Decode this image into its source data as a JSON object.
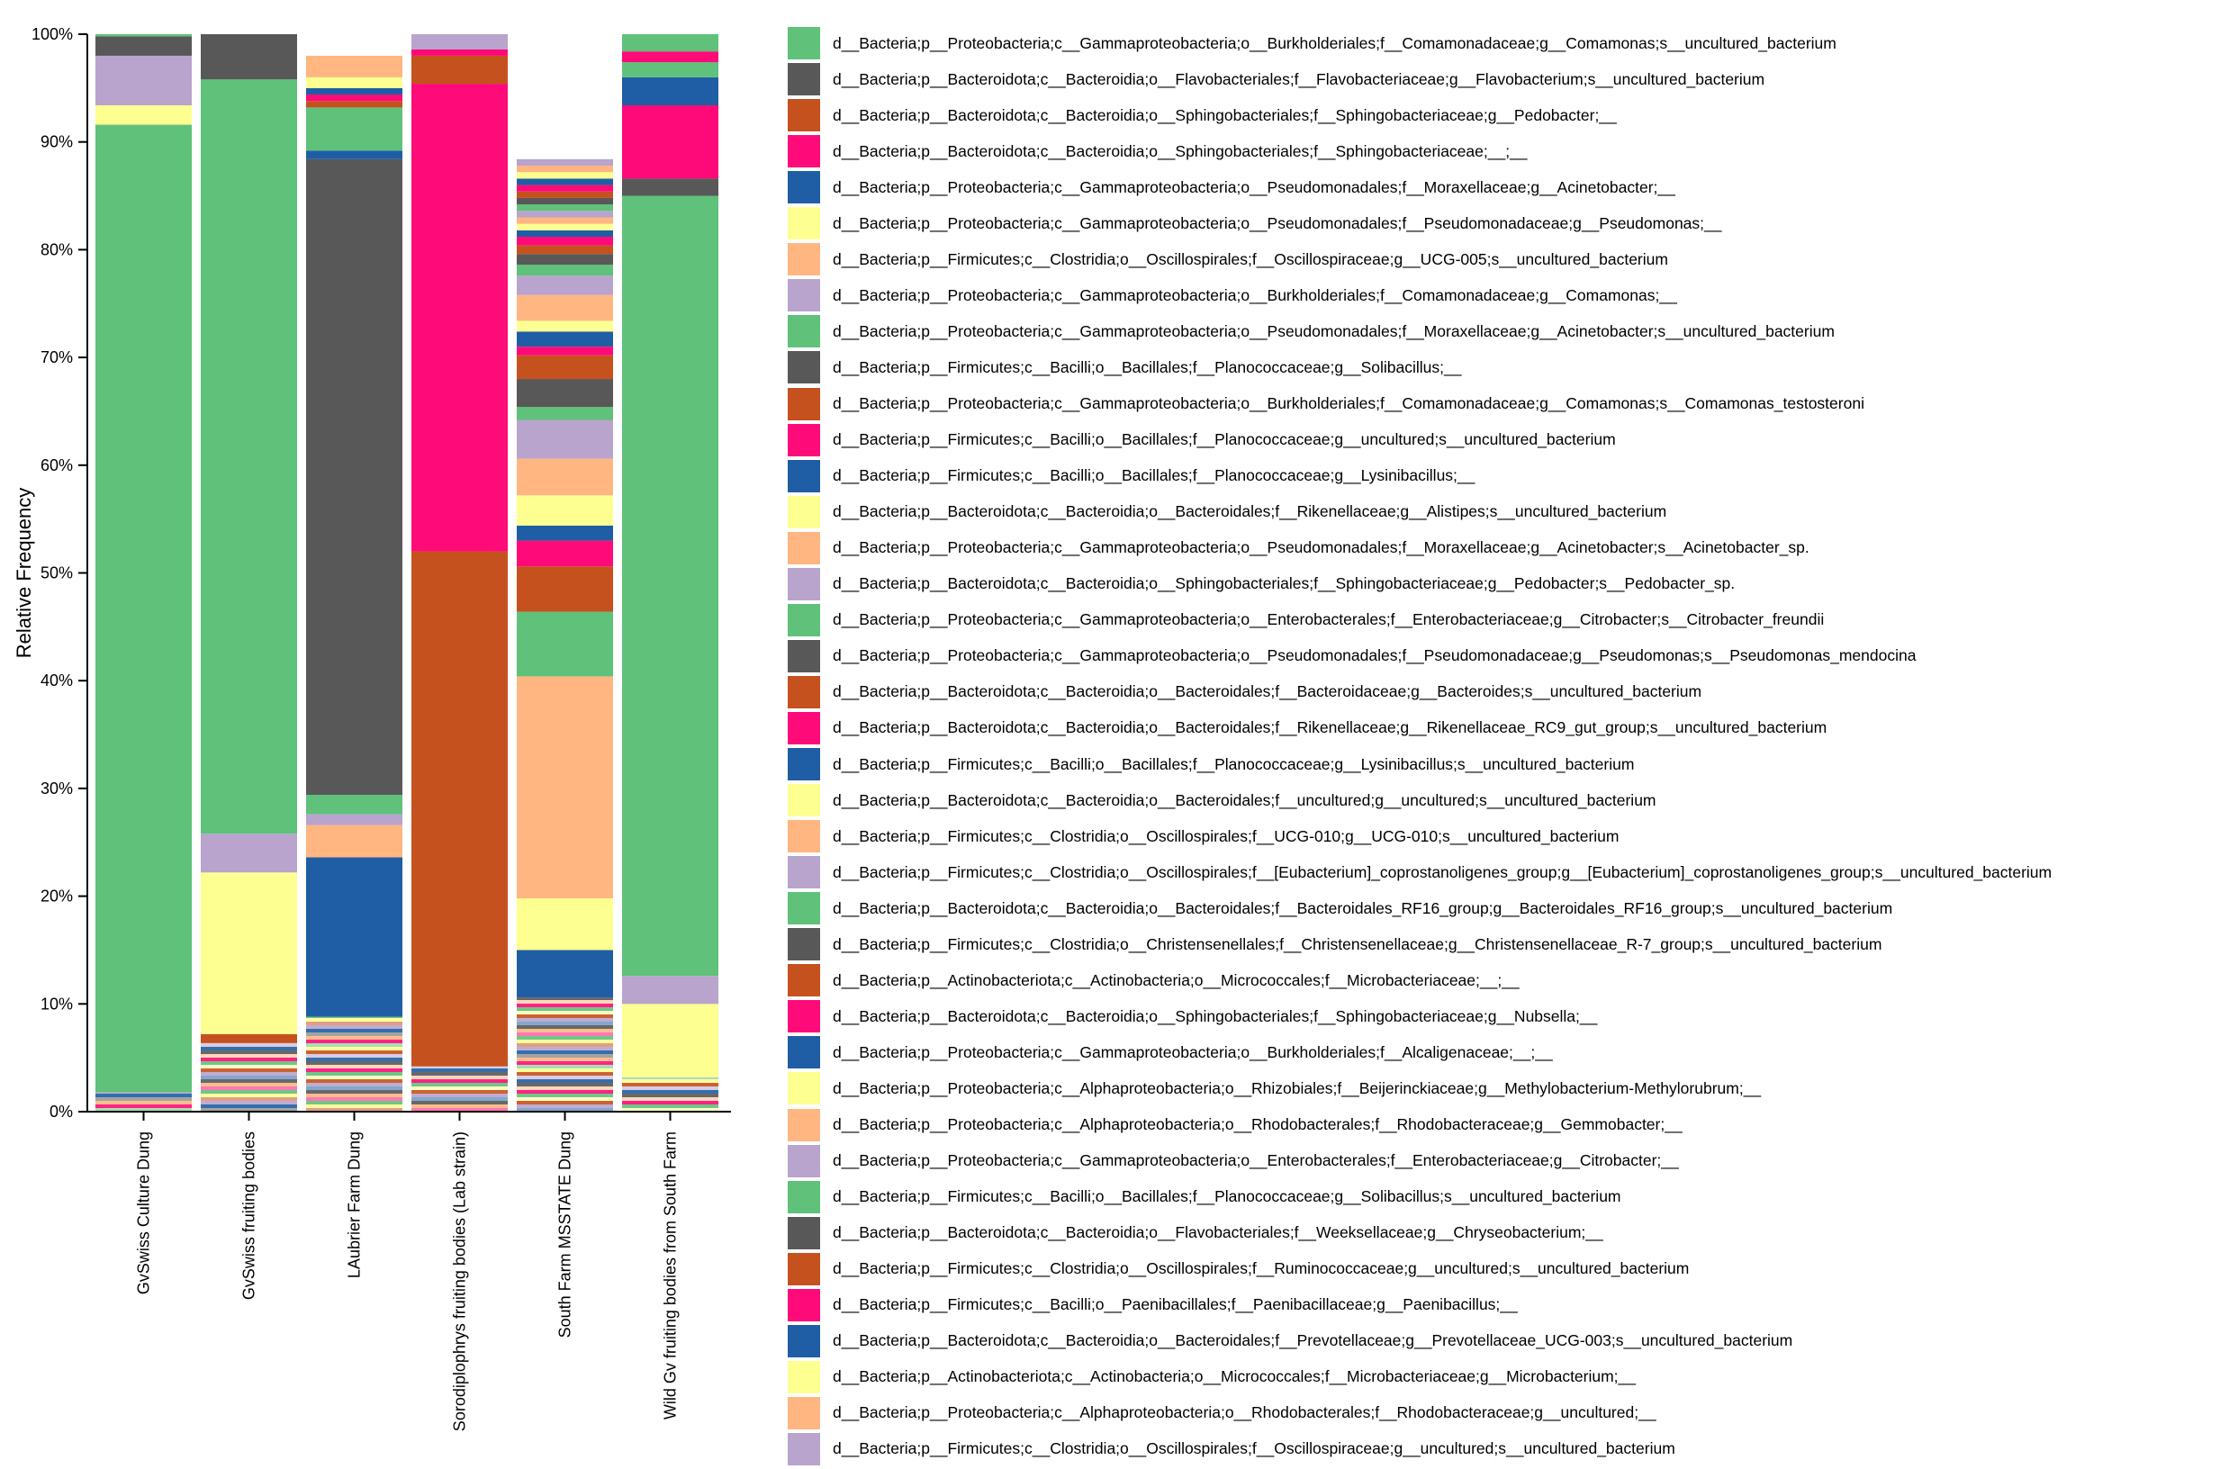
{
  "chart_data": {
    "type": "bar",
    "stacked": true,
    "ylabel": "Relative Frequency",
    "xlabel": "",
    "ylim": [
      0,
      100
    ],
    "y_ticks": [
      "0%",
      "10%",
      "20%",
      "30%",
      "40%",
      "50%",
      "60%",
      "70%",
      "80%",
      "90%",
      "100%"
    ],
    "palette": [
      "#5fc17a",
      "#585858",
      "#c5511f",
      "#ff0a79",
      "#1f5ea4",
      "#feff91",
      "#ffb681",
      "#b8a4cc"
    ],
    "categories": [
      "GvSwiss Culture Dung",
      "GvSwiss fruiting bodies",
      "LAubrier Farm Dung",
      "Sorodiplophrys fruiting bodies (Lab strain)",
      "South Farm MSSTATE Dung",
      "Wild Gv fruiting bodies from South Farm"
    ],
    "series": [
      {
        "name": "d__Bacteria;p__Proteobacteria;c__Gammaproteobacteria;o__Burkholderiales;f__Comamonadaceae;g__Comamonas;s__uncultured_bacterium",
        "values": [
          89.8,
          0,
          0,
          0,
          0,
          0
        ]
      },
      {
        "name": "d__Bacteria;p__Bacteroidota;c__Bacteroidia;o__Flavobacteriales;f__Flavobacteriaceae;g__Flavobacterium;s__uncultured_bacterium",
        "values": [
          0,
          0,
          0,
          0,
          0,
          0
        ]
      },
      {
        "name": "d__Bacteria;p__Bacteroidota;c__Bacteroidia;o__Sphingobacteriales;f__Sphingobacteriaceae;g__Pedobacter;__",
        "values": [
          0,
          0.8,
          0,
          47.8,
          0,
          0
        ]
      },
      {
        "name": "d__Bacteria;p__Bacteroidota;c__Bacteroidia;o__Sphingobacteriales;f__Sphingobacteriaceae;__;__",
        "values": [
          0,
          0,
          0,
          43.4,
          0,
          0
        ]
      },
      {
        "name": "d__Bacteria;p__Proteobacteria;c__Gammaproteobacteria;o__Pseudomonadales;f__Moraxellaceae;g__Acinetobacter;__",
        "values": [
          0,
          0,
          14.8,
          0,
          4.4,
          0
        ]
      },
      {
        "name": "d__Bacteria;p__Proteobacteria;c__Gammaproteobacteria;o__Pseudomonadales;f__Pseudomonadaceae;g__Pseudomonas;__",
        "values": [
          1.8,
          15.0,
          0,
          0,
          4.8,
          6.8
        ]
      },
      {
        "name": "d__Bacteria;p__Firmicutes;c__Clostridia;o__Oscillospirales;f__Oscillospiraceae;g__UCG-005;s__uncultured_bacterium",
        "values": [
          0,
          0,
          3.0,
          0,
          20.6,
          0
        ]
      },
      {
        "name": "d__Bacteria;p__Proteobacteria;c__Gammaproteobacteria;o__Burkholderiales;f__Comamonadaceae;g__Comamonas;__",
        "values": [
          4.6,
          3.6,
          1.0,
          0,
          0,
          2.6
        ]
      },
      {
        "name": "d__Bacteria;p__Proteobacteria;c__Gammaproteobacteria;o__Pseudomonadales;f__Moraxellaceae;g__Acinetobacter;s__uncultured_bacterium",
        "values": [
          0,
          70.0,
          1.8,
          0,
          6.0,
          72.4
        ]
      },
      {
        "name": "d__Bacteria;p__Firmicutes;c__Bacilli;o__Bacillales;f__Planococcaceae;g__Solibacillus;__",
        "values": [
          1.8,
          4.2,
          59.0,
          0,
          0,
          1.6
        ]
      },
      {
        "name": "d__Bacteria;p__Proteobacteria;c__Gammaproteobacteria;o__Burkholderiales;f__Comamonadaceae;g__Comamonas;s__Comamonas_testosteroni",
        "values": [
          0,
          0,
          0,
          0,
          4.2,
          0
        ]
      },
      {
        "name": "d__Bacteria;p__Firmicutes;c__Bacilli;o__Bacillales;f__Planococcaceae;g__uncultured;s__uncultured_bacterium",
        "values": [
          0,
          0,
          0,
          0,
          2.4,
          6.8
        ]
      },
      {
        "name": "d__Bacteria;p__Firmicutes;c__Bacilli;o__Bacillales;f__Planococcaceae;g__Lysinibacillus;__",
        "values": [
          0,
          0,
          0,
          0,
          1.4,
          2.6
        ]
      },
      {
        "name": "d__Bacteria;p__Bacteroidota;c__Bacteroidia;o__Bacteroidales;f__Rikenellaceae;g__Alistipes;s__uncultured_bacterium",
        "values": [
          0,
          0,
          0,
          0,
          2.8,
          0
        ]
      },
      {
        "name": "d__Bacteria;p__Proteobacteria;c__Gammaproteobacteria;o__Pseudomonadales;f__Moraxellaceae;g__Acinetobacter;s__Acinetobacter_sp.",
        "values": [
          0,
          0,
          0,
          0,
          3.4,
          0
        ]
      },
      {
        "name": "d__Bacteria;p__Bacteroidota;c__Bacteroidia;o__Sphingobacteriales;f__Sphingobacteriaceae;g__Pedobacter;s__Pedobacter_sp.",
        "values": [
          0,
          0,
          0,
          0,
          3.6,
          0
        ]
      },
      {
        "name": "d__Bacteria;p__Proteobacteria;c__Gammaproteobacteria;o__Enterobacterales;f__Enterobacteriaceae;g__Citrobacter;s__Citrobacter_freundii",
        "values": [
          0,
          0,
          0,
          0,
          1.2,
          1.4
        ]
      },
      {
        "name": "d__Bacteria;p__Proteobacteria;c__Gammaproteobacteria;o__Pseudomonadales;f__Pseudomonadaceae;g__Pseudomonas;s__Pseudomonas_mendocina",
        "values": [
          0,
          0,
          0,
          0,
          2.6,
          0
        ]
      },
      {
        "name": "d__Bacteria;p__Bacteroidota;c__Bacteroidia;o__Bacteroidales;f__Bacteroidaceae;g__Bacteroides;s__uncultured_bacterium",
        "values": [
          0,
          0,
          0,
          2.6,
          2.2,
          0
        ]
      },
      {
        "name": "d__Bacteria;p__Bacteroidota;c__Bacteroidia;o__Bacteroidales;f__Rikenellaceae;g__Rikenellaceae_RC9_gut_group;s__uncultured_bacterium",
        "values": [
          0,
          0,
          0,
          0.6,
          0.8,
          1.0
        ]
      },
      {
        "name": "d__Bacteria;p__Firmicutes;c__Bacilli;o__Bacillales;f__Planococcaceae;g__Lysinibacillus;s__uncultured_bacterium",
        "values": [
          0,
          0,
          0.8,
          0,
          1.4,
          0
        ]
      },
      {
        "name": "d__Bacteria;p__Bacteroidota;c__Bacteroidia;o__Bacteroidales;f__uncultured;g__uncultured;s__uncultured_bacterium",
        "values": [
          0,
          0,
          0,
          0,
          1.0,
          0
        ]
      },
      {
        "name": "d__Bacteria;p__Firmicutes;c__Clostridia;o__Oscillospirales;f__UCG-010;g__UCG-010;s__uncultured_bacterium",
        "values": [
          0,
          0,
          0,
          0,
          2.4,
          0
        ]
      },
      {
        "name": "d__Bacteria;p__Firmicutes;c__Clostridia;o__Oscillospirales;f__[Eubacterium]_coprostanoligenes_group;g__[Eubacterium]_coprostanoligenes_group;s__uncultured_bacterium",
        "values": [
          0,
          0,
          0,
          1.4,
          1.8,
          0
        ]
      },
      {
        "name": "d__Bacteria;p__Bacteroidota;c__Bacteroidia;o__Bacteroidales;f__Bacteroidales_RF16_group;g__Bacteroidales_RF16_group;s__uncultured_bacterium",
        "values": [
          0.2,
          0,
          4.0,
          0,
          1.0,
          1.6
        ]
      },
      {
        "name": "d__Bacteria;p__Firmicutes;c__Clostridia;o__Christensenellales;f__Christensenellaceae;g__Christensenellaceae_R-7_group;s__uncultured_bacterium",
        "values": [
          0,
          0,
          0,
          0,
          1.0,
          0
        ]
      },
      {
        "name": "d__Bacteria;p__Actinobacteriota;c__Actinobacteria;o__Micrococcales;f__Microbacteriaceae;__;__",
        "values": [
          0,
          0,
          0.6,
          0,
          0.8,
          0
        ]
      },
      {
        "name": "d__Bacteria;p__Bacteroidota;c__Bacteroidia;o__Sphingobacteriales;f__Sphingobacteriaceae;g__Nubsella;__",
        "values": [
          0,
          0,
          0.6,
          0,
          0.8,
          0
        ]
      },
      {
        "name": "d__Bacteria;p__Proteobacteria;c__Gammaproteobacteria;o__Burkholderiales;f__Alcaligenaceae;__;__",
        "values": [
          0,
          0,
          0.6,
          0,
          0.6,
          0
        ]
      },
      {
        "name": "d__Bacteria;p__Proteobacteria;c__Alphaproteobacteria;o__Rhizobiales;f__Beijerinckiaceae;g__Methylobacterium-Methylorubrum;__",
        "values": [
          0,
          0,
          1.0,
          0,
          0.6,
          0
        ]
      },
      {
        "name": "d__Bacteria;p__Proteobacteria;c__Alphaproteobacteria;o__Rhodobacterales;f__Rhodobacteraceae;g__Gemmobacter;__",
        "values": [
          0,
          0,
          2.0,
          0,
          0.6,
          0
        ]
      },
      {
        "name": "d__Bacteria;p__Proteobacteria;c__Gammaproteobacteria;o__Enterobacterales;f__Enterobacteriaceae;g__Citrobacter;__",
        "values": [
          0,
          0,
          0,
          0,
          0.6,
          0
        ]
      },
      {
        "name": "d__Bacteria;p__Firmicutes;c__Bacilli;o__Bacillales;f__Planococcaceae;g__Solibacillus;s__uncultured_bacterium",
        "values": [
          0,
          0,
          0,
          0,
          0.6,
          0
        ]
      },
      {
        "name": "d__Bacteria;p__Bacteroidota;c__Bacteroidia;o__Flavobacteriales;f__Weeksellaceae;g__Chryseobacterium;__",
        "values": [
          0,
          0,
          0,
          0,
          0.6,
          0
        ]
      },
      {
        "name": "d__Bacteria;p__Firmicutes;c__Clostridia;o__Oscillospirales;f__Ruminococcaceae;g__uncultured;s__uncultured_bacterium",
        "values": [
          0,
          0,
          0,
          0,
          0.6,
          0
        ]
      },
      {
        "name": "d__Bacteria;p__Firmicutes;c__Bacilli;o__Paenibacillales;f__Paenibacillaceae;g__Paenibacillus;__",
        "values": [
          0,
          0,
          0,
          0,
          0.6,
          0
        ]
      },
      {
        "name": "d__Bacteria;p__Bacteroidota;c__Bacteroidia;o__Bacteroidales;f__Prevotellaceae;g__Prevotellaceae_UCG-003;s__uncultured_bacterium",
        "values": [
          0,
          0,
          0,
          0,
          0.6,
          0
        ]
      },
      {
        "name": "d__Bacteria;p__Actinobacteriota;c__Actinobacteria;o__Micrococcales;f__Microbacteriaceae;g__Microbacterium;__",
        "values": [
          0,
          0,
          0,
          0,
          0.6,
          0
        ]
      },
      {
        "name": "d__Bacteria;p__Proteobacteria;c__Alphaproteobacteria;o__Rhodobacterales;f__Rhodobacteraceae;g__uncultured;__",
        "values": [
          0,
          0,
          0,
          0,
          0.6,
          0
        ]
      },
      {
        "name": "d__Bacteria;p__Firmicutes;c__Clostridia;o__Oscillospirales;f__Oscillospiraceae;g__uncultured;s__uncultured_bacterium",
        "values": [
          0,
          0,
          0,
          0,
          0.6,
          0
        ]
      }
    ],
    "other_low_abundance_taxa": [
      1.8,
      6.4,
      8.8,
      4.2,
      10.6,
      3.2
    ],
    "legend_position": "right"
  }
}
